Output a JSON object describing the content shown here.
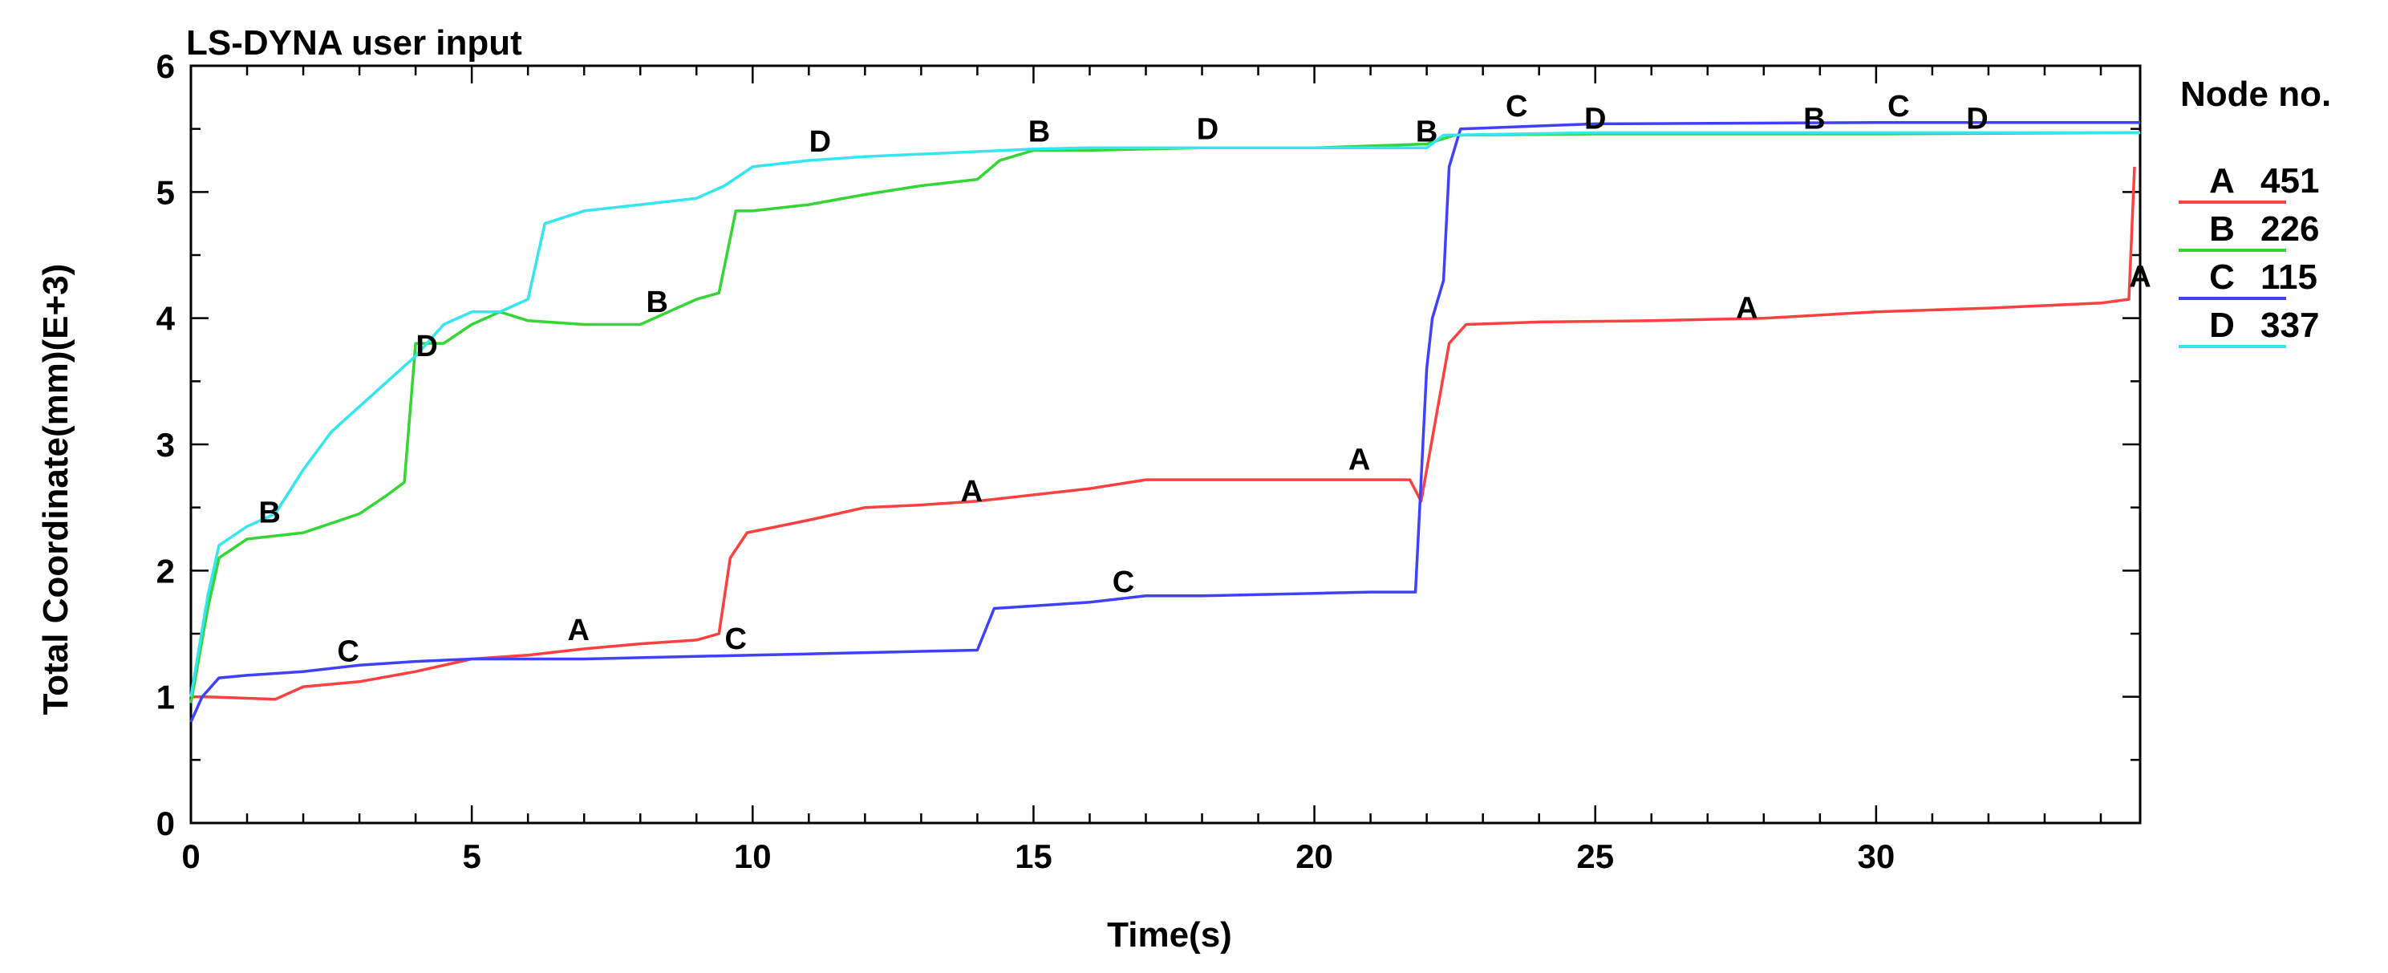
{
  "chart_data": {
    "type": "line",
    "title": "LS-DYNA user input",
    "xlabel": "Time(s)",
    "ylabel": "Total Coordinate(mm)(E+3)",
    "xlim": [
      0,
      34.7
    ],
    "ylim": [
      0,
      6
    ],
    "x_ticks": [
      0,
      5,
      10,
      15,
      20,
      25,
      30
    ],
    "y_ticks": [
      0,
      1,
      2,
      3,
      4,
      5,
      6
    ],
    "grid": false,
    "legend_title": "Node no.",
    "legend_position": "right",
    "series": [
      {
        "name": "A",
        "node": "451",
        "color": "#ff4040",
        "points": [
          [
            0,
            1.0
          ],
          [
            0.3,
            1.0
          ],
          [
            1.5,
            0.98
          ],
          [
            2,
            1.08
          ],
          [
            3,
            1.12
          ],
          [
            4,
            1.2
          ],
          [
            5,
            1.3
          ],
          [
            6,
            1.33
          ],
          [
            7,
            1.38
          ],
          [
            8,
            1.42
          ],
          [
            9,
            1.45
          ],
          [
            9.4,
            1.5
          ],
          [
            9.6,
            2.1
          ],
          [
            9.9,
            2.3
          ],
          [
            11,
            2.4
          ],
          [
            12,
            2.5
          ],
          [
            13,
            2.52
          ],
          [
            14,
            2.55
          ],
          [
            15,
            2.6
          ],
          [
            16,
            2.65
          ],
          [
            17,
            2.72
          ],
          [
            18,
            2.72
          ],
          [
            19,
            2.72
          ],
          [
            20,
            2.72
          ],
          [
            21,
            2.72
          ],
          [
            21.7,
            2.72
          ],
          [
            21.9,
            2.55
          ],
          [
            22.2,
            3.3
          ],
          [
            22.4,
            3.8
          ],
          [
            22.7,
            3.95
          ],
          [
            24,
            3.97
          ],
          [
            26,
            3.98
          ],
          [
            28,
            4.0
          ],
          [
            30,
            4.05
          ],
          [
            32,
            4.08
          ],
          [
            34,
            4.12
          ],
          [
            34.5,
            4.15
          ],
          [
            34.6,
            5.2
          ]
        ],
        "labels": [
          [
            6.9,
            1.45
          ],
          [
            13.9,
            2.55
          ],
          [
            20.8,
            2.8
          ],
          [
            27.7,
            4.0
          ],
          [
            34.7,
            4.25
          ]
        ]
      },
      {
        "name": "B",
        "node": "226",
        "color": "#33d633",
        "points": [
          [
            0,
            0.95
          ],
          [
            0.3,
            1.7
          ],
          [
            0.5,
            2.1
          ],
          [
            1,
            2.25
          ],
          [
            2,
            2.3
          ],
          [
            3,
            2.45
          ],
          [
            3.5,
            2.6
          ],
          [
            3.8,
            2.7
          ],
          [
            4.0,
            3.8
          ],
          [
            4.5,
            3.8
          ],
          [
            5,
            3.95
          ],
          [
            5.5,
            4.05
          ],
          [
            6,
            3.98
          ],
          [
            7,
            3.95
          ],
          [
            8,
            3.95
          ],
          [
            8.5,
            4.05
          ],
          [
            9,
            4.15
          ],
          [
            9.4,
            4.2
          ],
          [
            9.7,
            4.85
          ],
          [
            10,
            4.85
          ],
          [
            11,
            4.9
          ],
          [
            12,
            4.98
          ],
          [
            13,
            5.05
          ],
          [
            14,
            5.1
          ],
          [
            14.4,
            5.25
          ],
          [
            15,
            5.33
          ],
          [
            16,
            5.33
          ],
          [
            18,
            5.35
          ],
          [
            20,
            5.35
          ],
          [
            22,
            5.38
          ],
          [
            22.5,
            5.45
          ],
          [
            25,
            5.46
          ],
          [
            30,
            5.46
          ],
          [
            34.7,
            5.47
          ]
        ],
        "labels": [
          [
            1.4,
            2.38
          ],
          [
            8.3,
            4.05
          ],
          [
            15.1,
            5.4
          ],
          [
            22.0,
            5.4
          ],
          [
            28.9,
            5.5
          ]
        ]
      },
      {
        "name": "C",
        "node": "115",
        "color": "#4040ff",
        "points": [
          [
            0,
            0.8
          ],
          [
            0.2,
            1.0
          ],
          [
            0.5,
            1.15
          ],
          [
            1,
            1.17
          ],
          [
            2,
            1.2
          ],
          [
            3,
            1.25
          ],
          [
            4,
            1.28
          ],
          [
            5,
            1.3
          ],
          [
            6,
            1.3
          ],
          [
            7,
            1.3
          ],
          [
            8,
            1.31
          ],
          [
            9,
            1.32
          ],
          [
            10,
            1.33
          ],
          [
            11,
            1.34
          ],
          [
            12,
            1.35
          ],
          [
            13,
            1.36
          ],
          [
            14,
            1.37
          ],
          [
            14.3,
            1.7
          ],
          [
            15,
            1.72
          ],
          [
            16,
            1.75
          ],
          [
            17,
            1.8
          ],
          [
            18,
            1.8
          ],
          [
            19,
            1.81
          ],
          [
            20,
            1.82
          ],
          [
            21,
            1.83
          ],
          [
            21.8,
            1.83
          ],
          [
            22.0,
            3.6
          ],
          [
            22.1,
            4.0
          ],
          [
            22.3,
            4.3
          ],
          [
            22.4,
            5.2
          ],
          [
            22.6,
            5.5
          ],
          [
            25,
            5.54
          ],
          [
            30,
            5.55
          ],
          [
            34.7,
            5.55
          ]
        ],
        "labels": [
          [
            2.8,
            1.28
          ],
          [
            9.7,
            1.38
          ],
          [
            16.6,
            1.83
          ],
          [
            23.6,
            5.6
          ],
          [
            30.4,
            5.6
          ]
        ]
      },
      {
        "name": "D",
        "node": "337",
        "color": "#33e6f0",
        "points": [
          [
            0,
            1.0
          ],
          [
            0.3,
            1.8
          ],
          [
            0.5,
            2.2
          ],
          [
            1,
            2.35
          ],
          [
            1.5,
            2.45
          ],
          [
            2,
            2.8
          ],
          [
            2.5,
            3.1
          ],
          [
            3,
            3.3
          ],
          [
            3.5,
            3.5
          ],
          [
            4,
            3.7
          ],
          [
            4.5,
            3.95
          ],
          [
            5,
            4.05
          ],
          [
            5.5,
            4.05
          ],
          [
            6,
            4.15
          ],
          [
            6.3,
            4.75
          ],
          [
            7,
            4.85
          ],
          [
            8,
            4.9
          ],
          [
            9,
            4.95
          ],
          [
            9.5,
            5.05
          ],
          [
            10,
            5.2
          ],
          [
            11,
            5.25
          ],
          [
            12,
            5.28
          ],
          [
            13,
            5.3
          ],
          [
            14,
            5.32
          ],
          [
            15,
            5.34
          ],
          [
            16,
            5.35
          ],
          [
            18,
            5.35
          ],
          [
            20,
            5.35
          ],
          [
            22,
            5.35
          ],
          [
            22.3,
            5.45
          ],
          [
            25,
            5.47
          ],
          [
            30,
            5.47
          ],
          [
            34.7,
            5.47
          ]
        ],
        "labels": [
          [
            4.2,
            3.7
          ],
          [
            11.2,
            5.32
          ],
          [
            18.1,
            5.42
          ],
          [
            25.0,
            5.5
          ],
          [
            31.8,
            5.5
          ]
        ]
      }
    ]
  }
}
